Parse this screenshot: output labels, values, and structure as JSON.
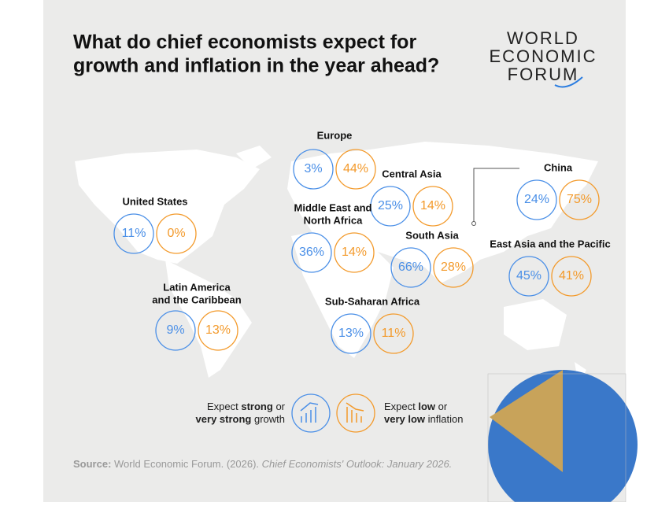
{
  "header": {
    "title": [
      "What do chief economists expect for",
      "growth and inflation in the year ahead?"
    ]
  },
  "logo": [
    "WORLD",
    "ECONOMIC",
    "FORUM"
  ],
  "regions": [
    {
      "name": [
        "Europe"
      ],
      "growth": "3%",
      "inflation": "44%"
    },
    {
      "name": [
        "United States"
      ],
      "growth": "11%",
      "inflation": "0%"
    },
    {
      "name": [
        "Central Asia"
      ],
      "growth": "25%",
      "inflation": "14%"
    },
    {
      "name": [
        "Middle East and",
        "North Africa"
      ],
      "growth": "36%",
      "inflation": "14%"
    },
    {
      "name": [
        "China"
      ],
      "growth": "24%",
      "inflation": "75%"
    },
    {
      "name": [
        "South Asia"
      ],
      "growth": "66%",
      "inflation": "28%"
    },
    {
      "name": [
        "East Asia and the Pacific"
      ],
      "growth": "45%",
      "inflation": "41%"
    },
    {
      "name": [
        "Latin America",
        "and the Caribbean"
      ],
      "growth": "9%",
      "inflation": "13%"
    },
    {
      "name": [
        "Sub-Saharan Africa"
      ],
      "growth": "13%",
      "inflation": "11%"
    }
  ],
  "legend": {
    "growth": [
      [
        "Expect ",
        "strong",
        " or"
      ],
      [
        "very strong",
        " growth"
      ]
    ],
    "inflation": [
      [
        "Expect ",
        "low",
        " or"
      ],
      [
        "very low",
        " inflation"
      ]
    ]
  },
  "source": [
    "Source:",
    " World Economic Forum. (2026). ",
    "Chief Economists' Outlook: January 2026."
  ]
}
